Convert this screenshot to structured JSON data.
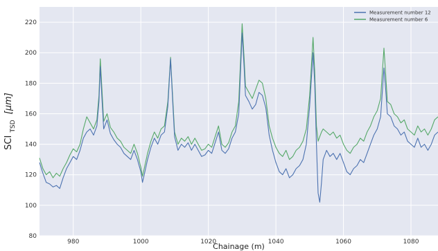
{
  "chart_data": {
    "type": "line",
    "title": "",
    "xlabel": "Chainage (m)",
    "ylabel_main": "SCI",
    "ylabel_sub": "TSD",
    "ylabel_unit": "[μm]",
    "xlim": [
      970,
      1088
    ],
    "ylim": [
      80,
      230
    ],
    "x_ticks": [
      980,
      1000,
      1020,
      1040,
      1060,
      1080
    ],
    "y_ticks": [
      80,
      100,
      120,
      140,
      160,
      180,
      200,
      220
    ],
    "grid": true,
    "legend_position": "top-right",
    "background_color": "#e4e7f1",
    "series": [
      {
        "name": "Measurement number 12",
        "color": "#4c72b0",
        "points": [
          [
            970,
            128
          ],
          [
            971,
            121
          ],
          [
            972,
            115
          ],
          [
            973,
            114
          ],
          [
            974,
            112
          ],
          [
            975,
            113
          ],
          [
            976,
            111
          ],
          [
            977,
            118
          ],
          [
            978,
            124
          ],
          [
            979,
            128
          ],
          [
            980,
            132
          ],
          [
            981,
            130
          ],
          [
            982,
            136
          ],
          [
            983,
            144
          ],
          [
            984,
            148
          ],
          [
            985,
            150
          ],
          [
            986,
            146
          ],
          [
            987,
            152
          ],
          [
            987.6,
            168
          ],
          [
            988,
            191
          ],
          [
            988.5,
            170
          ],
          [
            989,
            150
          ],
          [
            990,
            156
          ],
          [
            991,
            147
          ],
          [
            992,
            143
          ],
          [
            993,
            140
          ],
          [
            994,
            138
          ],
          [
            995,
            134
          ],
          [
            996,
            132
          ],
          [
            997,
            130
          ],
          [
            998,
            136
          ],
          [
            999,
            130
          ],
          [
            1000,
            122
          ],
          [
            1000.5,
            115
          ],
          [
            1001,
            120
          ],
          [
            1002,
            130
          ],
          [
            1003,
            138
          ],
          [
            1004,
            144
          ],
          [
            1005,
            140
          ],
          [
            1006,
            146
          ],
          [
            1007,
            148
          ],
          [
            1008,
            165
          ],
          [
            1008.8,
            196
          ],
          [
            1009.5,
            165
          ],
          [
            1010,
            145
          ],
          [
            1011,
            136
          ],
          [
            1012,
            140
          ],
          [
            1013,
            138
          ],
          [
            1014,
            141
          ],
          [
            1015,
            136
          ],
          [
            1016,
            140
          ],
          [
            1017,
            136
          ],
          [
            1018,
            132
          ],
          [
            1019,
            133
          ],
          [
            1020,
            136
          ],
          [
            1021,
            134
          ],
          [
            1022,
            141
          ],
          [
            1023,
            148
          ],
          [
            1024,
            136
          ],
          [
            1025,
            134
          ],
          [
            1026,
            137
          ],
          [
            1027,
            144
          ],
          [
            1028,
            148
          ],
          [
            1029,
            160
          ],
          [
            1030,
            213
          ],
          [
            1030.6,
            190
          ],
          [
            1031,
            172
          ],
          [
            1032,
            168
          ],
          [
            1033,
            163
          ],
          [
            1034,
            166
          ],
          [
            1035,
            174
          ],
          [
            1036,
            172
          ],
          [
            1037,
            164
          ],
          [
            1038,
            146
          ],
          [
            1039,
            136
          ],
          [
            1040,
            128
          ],
          [
            1041,
            122
          ],
          [
            1042,
            120
          ],
          [
            1043,
            124
          ],
          [
            1044,
            118
          ],
          [
            1045,
            120
          ],
          [
            1046,
            124
          ],
          [
            1047,
            126
          ],
          [
            1048,
            130
          ],
          [
            1049,
            140
          ],
          [
            1050,
            165
          ],
          [
            1051,
            200
          ],
          [
            1051.5,
            180
          ],
          [
            1052,
            140
          ],
          [
            1052.5,
            108
          ],
          [
            1053,
            102
          ],
          [
            1053.5,
            115
          ],
          [
            1054,
            130
          ],
          [
            1055,
            136
          ],
          [
            1056,
            132
          ],
          [
            1057,
            134
          ],
          [
            1058,
            130
          ],
          [
            1059,
            134
          ],
          [
            1060,
            128
          ],
          [
            1061,
            122
          ],
          [
            1062,
            120
          ],
          [
            1063,
            124
          ],
          [
            1064,
            126
          ],
          [
            1065,
            130
          ],
          [
            1066,
            128
          ],
          [
            1067,
            134
          ],
          [
            1068,
            140
          ],
          [
            1069,
            146
          ],
          [
            1070,
            150
          ],
          [
            1071,
            158
          ],
          [
            1072,
            190
          ],
          [
            1072.5,
            176
          ],
          [
            1073,
            160
          ],
          [
            1074,
            158
          ],
          [
            1075,
            152
          ],
          [
            1076,
            150
          ],
          [
            1077,
            146
          ],
          [
            1078,
            148
          ],
          [
            1079,
            142
          ],
          [
            1080,
            140
          ],
          [
            1081,
            138
          ],
          [
            1082,
            144
          ],
          [
            1083,
            138
          ],
          [
            1084,
            140
          ],
          [
            1085,
            136
          ],
          [
            1086,
            140
          ],
          [
            1087,
            146
          ],
          [
            1088,
            148
          ]
        ]
      },
      {
        "name": "Measurement number 6",
        "color": "#55a868",
        "points": [
          [
            970,
            131
          ],
          [
            971,
            124
          ],
          [
            972,
            120
          ],
          [
            973,
            122
          ],
          [
            974,
            118
          ],
          [
            975,
            121
          ],
          [
            976,
            119
          ],
          [
            977,
            124
          ],
          [
            978,
            128
          ],
          [
            979,
            133
          ],
          [
            980,
            137
          ],
          [
            981,
            135
          ],
          [
            982,
            140
          ],
          [
            983,
            150
          ],
          [
            984,
            158
          ],
          [
            985,
            154
          ],
          [
            986,
            150
          ],
          [
            987,
            156
          ],
          [
            987.6,
            172
          ],
          [
            988,
            196
          ],
          [
            988.5,
            176
          ],
          [
            989,
            155
          ],
          [
            990,
            160
          ],
          [
            991,
            151
          ],
          [
            992,
            148
          ],
          [
            993,
            144
          ],
          [
            994,
            142
          ],
          [
            995,
            138
          ],
          [
            996,
            136
          ],
          [
            997,
            134
          ],
          [
            998,
            140
          ],
          [
            999,
            134
          ],
          [
            1000,
            125
          ],
          [
            1000.5,
            119
          ],
          [
            1001,
            124
          ],
          [
            1002,
            134
          ],
          [
            1003,
            142
          ],
          [
            1004,
            148
          ],
          [
            1005,
            144
          ],
          [
            1006,
            150
          ],
          [
            1007,
            152
          ],
          [
            1008,
            168
          ],
          [
            1008.8,
            197
          ],
          [
            1009.5,
            168
          ],
          [
            1010,
            148
          ],
          [
            1011,
            140
          ],
          [
            1012,
            144
          ],
          [
            1013,
            142
          ],
          [
            1014,
            145
          ],
          [
            1015,
            140
          ],
          [
            1016,
            144
          ],
          [
            1017,
            140
          ],
          [
            1018,
            136
          ],
          [
            1019,
            137
          ],
          [
            1020,
            140
          ],
          [
            1021,
            138
          ],
          [
            1022,
            145
          ],
          [
            1023,
            152
          ],
          [
            1024,
            140
          ],
          [
            1025,
            138
          ],
          [
            1026,
            141
          ],
          [
            1027,
            148
          ],
          [
            1028,
            152
          ],
          [
            1029,
            168
          ],
          [
            1030,
            219
          ],
          [
            1030.6,
            196
          ],
          [
            1031,
            178
          ],
          [
            1032,
            174
          ],
          [
            1033,
            170
          ],
          [
            1034,
            176
          ],
          [
            1035,
            182
          ],
          [
            1036,
            180
          ],
          [
            1037,
            170
          ],
          [
            1038,
            152
          ],
          [
            1039,
            144
          ],
          [
            1040,
            138
          ],
          [
            1041,
            134
          ],
          [
            1042,
            132
          ],
          [
            1043,
            136
          ],
          [
            1044,
            130
          ],
          [
            1045,
            132
          ],
          [
            1046,
            136
          ],
          [
            1047,
            138
          ],
          [
            1048,
            142
          ],
          [
            1049,
            150
          ],
          [
            1050,
            172
          ],
          [
            1051,
            210
          ],
          [
            1051.5,
            188
          ],
          [
            1052,
            152
          ],
          [
            1052.5,
            142
          ],
          [
            1053,
            145
          ],
          [
            1053.5,
            148
          ],
          [
            1054,
            150
          ],
          [
            1055,
            148
          ],
          [
            1056,
            146
          ],
          [
            1057,
            148
          ],
          [
            1058,
            144
          ],
          [
            1059,
            146
          ],
          [
            1060,
            140
          ],
          [
            1061,
            136
          ],
          [
            1062,
            134
          ],
          [
            1063,
            138
          ],
          [
            1064,
            140
          ],
          [
            1065,
            144
          ],
          [
            1066,
            142
          ],
          [
            1067,
            148
          ],
          [
            1068,
            152
          ],
          [
            1069,
            158
          ],
          [
            1070,
            162
          ],
          [
            1071,
            170
          ],
          [
            1072,
            203
          ],
          [
            1072.5,
            186
          ],
          [
            1073,
            168
          ],
          [
            1074,
            166
          ],
          [
            1075,
            160
          ],
          [
            1076,
            158
          ],
          [
            1077,
            154
          ],
          [
            1078,
            156
          ],
          [
            1079,
            150
          ],
          [
            1080,
            148
          ],
          [
            1081,
            146
          ],
          [
            1082,
            152
          ],
          [
            1083,
            148
          ],
          [
            1084,
            150
          ],
          [
            1085,
            146
          ],
          [
            1086,
            150
          ],
          [
            1087,
            156
          ],
          [
            1088,
            158
          ]
        ]
      }
    ]
  }
}
